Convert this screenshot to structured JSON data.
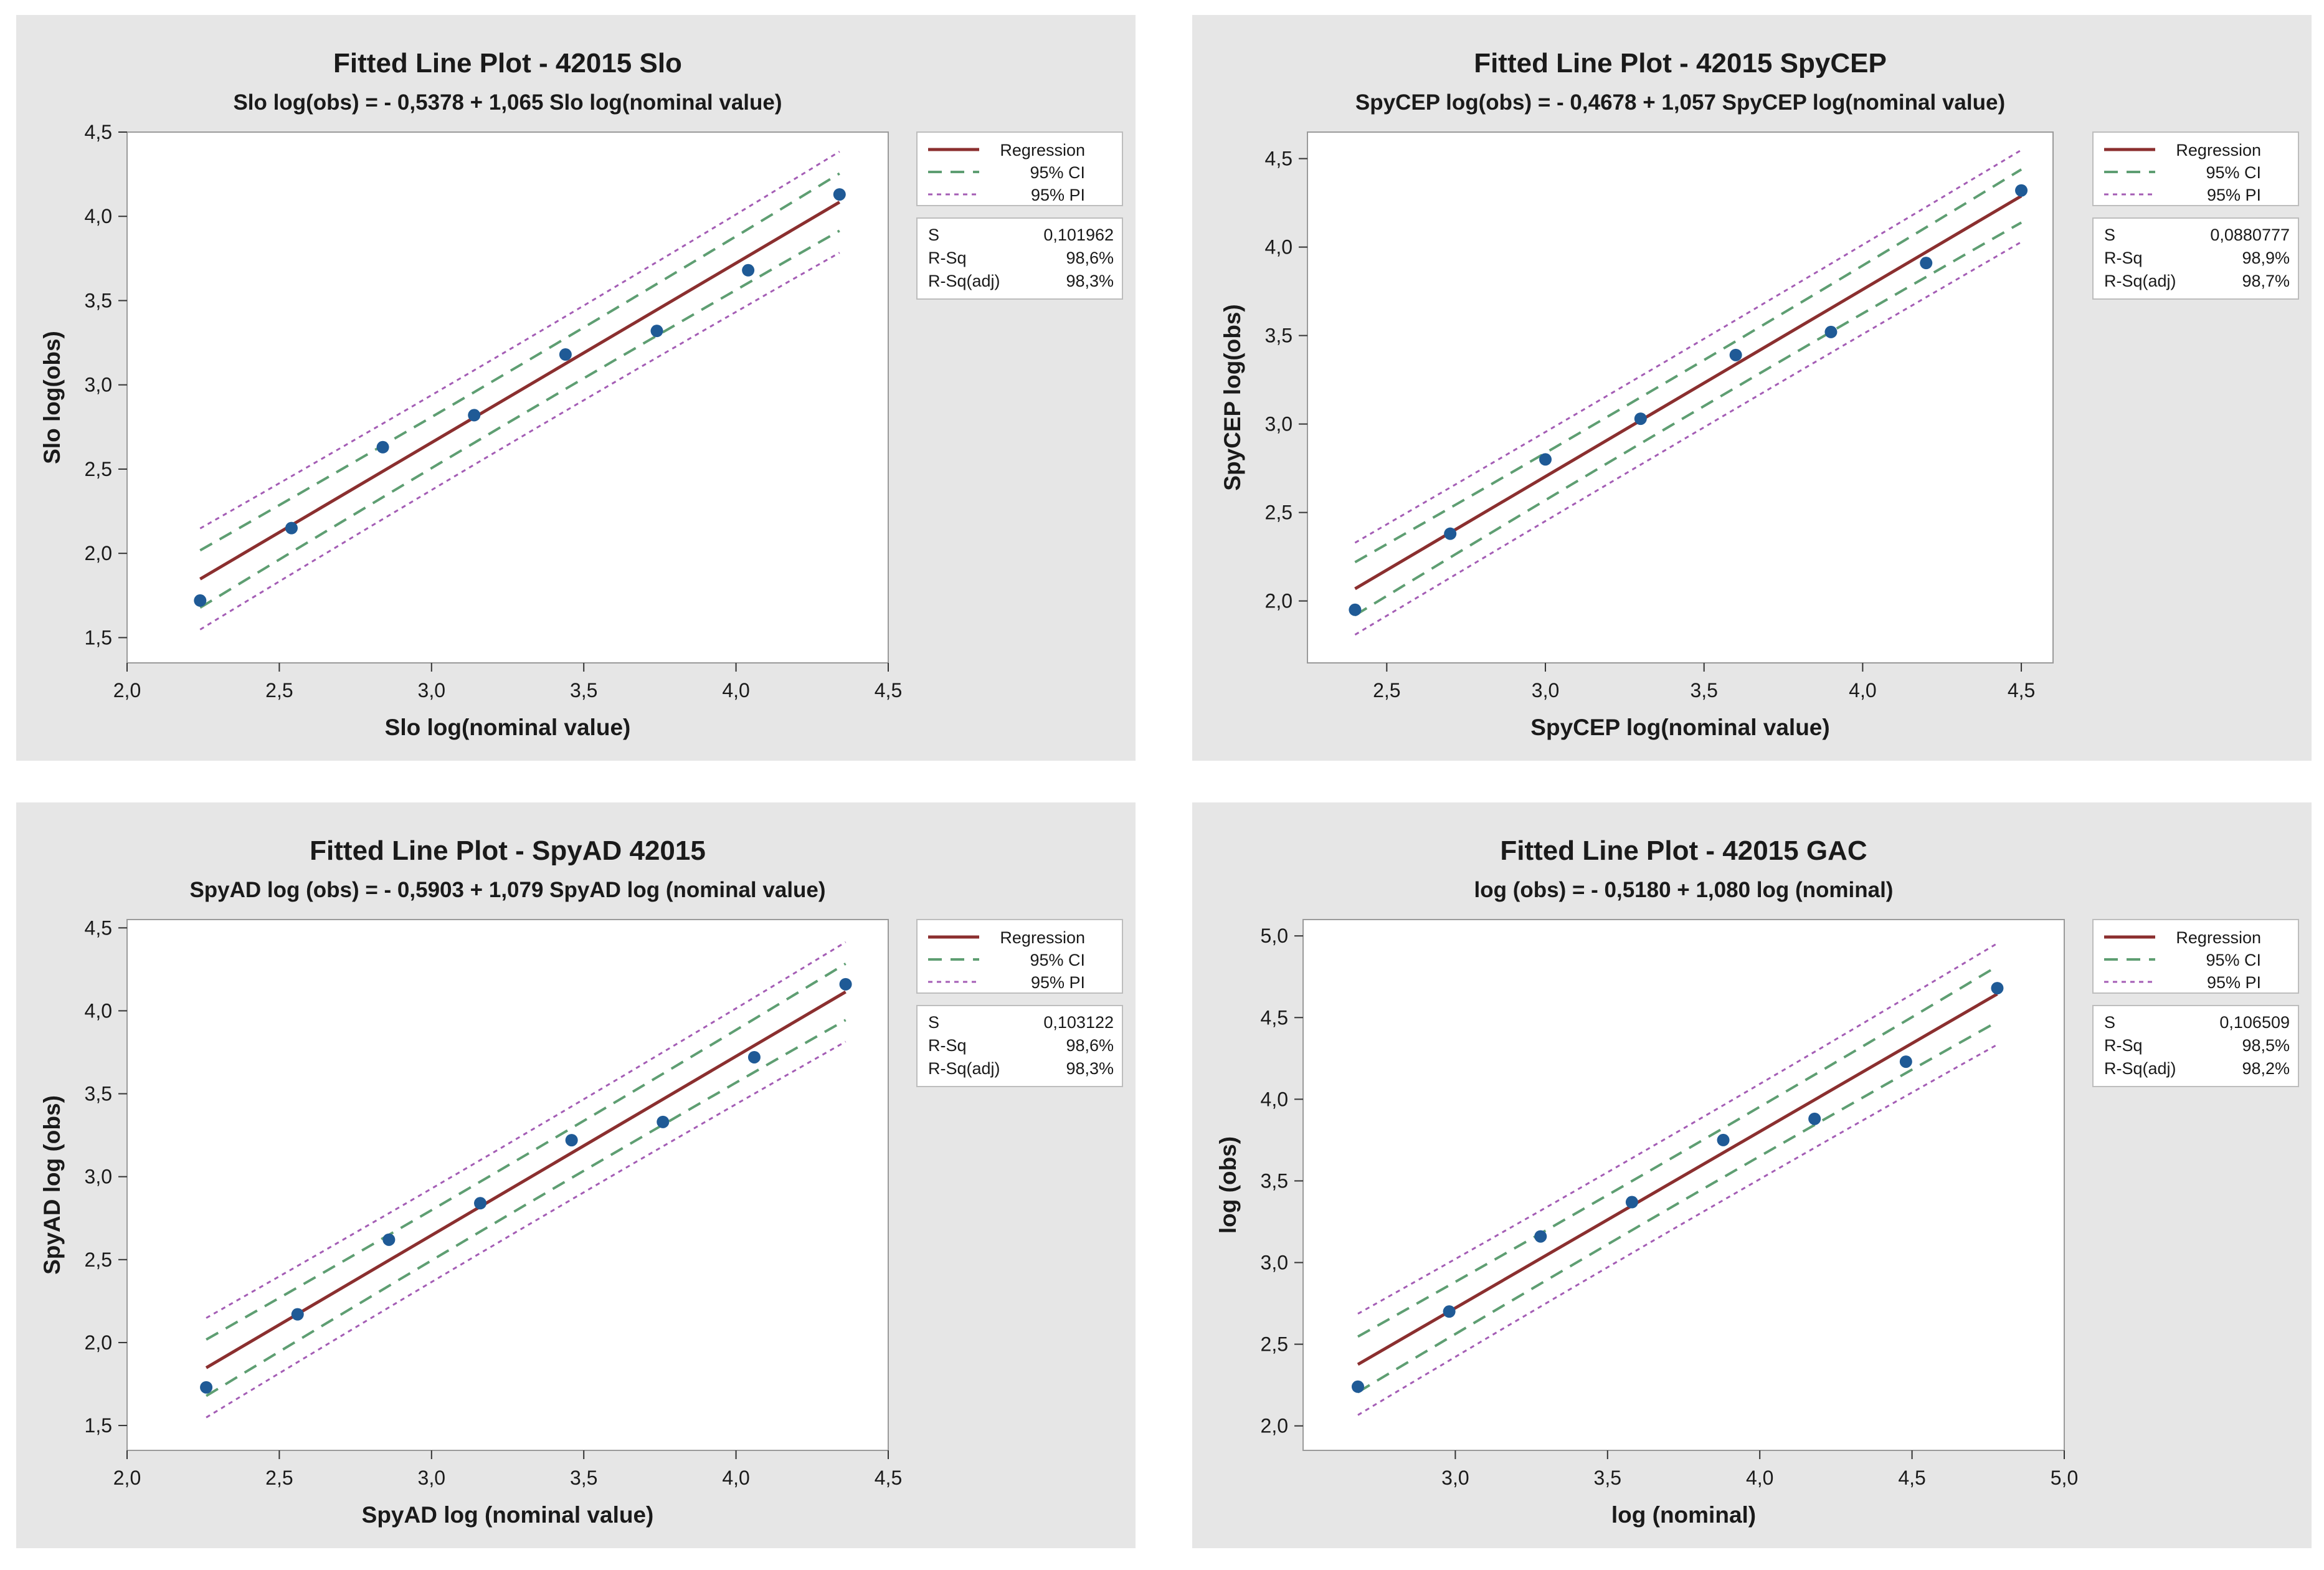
{
  "chart_data": [
    {
      "type": "scatter",
      "title": "Fitted Line Plot - 42015 Slo",
      "subtitle": "Slo log(obs) = - 0,5378 + 1,065 Slo log(nominal value)",
      "xlabel": "Slo log(nominal value)",
      "ylabel": "Slo log(obs)",
      "xlim": [
        2.0,
        4.5
      ],
      "ylim": [
        1.35,
        4.5
      ],
      "xticks": [
        2.0,
        2.5,
        3.0,
        3.5,
        4.0,
        4.5
      ],
      "xtick_labels": [
        "2,0",
        "2,5",
        "3,0",
        "3,5",
        "4,0",
        "4,5"
      ],
      "yticks": [
        1.5,
        2.0,
        2.5,
        3.0,
        3.5,
        4.0,
        4.5
      ],
      "ytick_labels": [
        "1,5",
        "2,0",
        "2,5",
        "3,0",
        "3,5",
        "4,0",
        "4,5"
      ],
      "regression": {
        "intercept": -0.5378,
        "slope": 1.065,
        "x_range": [
          2.24,
          4.34
        ]
      },
      "ci_half_width": {
        "center": 0.15,
        "edge": 0.17
      },
      "pi_half_width": {
        "center": 0.28,
        "edge": 0.3
      },
      "x": [
        2.24,
        2.54,
        2.84,
        3.14,
        3.44,
        3.74,
        4.04,
        4.34
      ],
      "y": [
        1.72,
        2.15,
        2.63,
        2.82,
        3.18,
        3.32,
        3.68,
        4.13
      ],
      "legend": {
        "regression": "Regression",
        "ci": "95% CI",
        "pi": "95% PI"
      },
      "stats": [
        {
          "label": "S",
          "value": "0,101962"
        },
        {
          "label": "R-Sq",
          "value": "98,6%"
        },
        {
          "label": "R-Sq(adj)",
          "value": "98,3%"
        }
      ]
    },
    {
      "type": "scatter",
      "title": "Fitted Line Plot - 42015 SpyCEP",
      "subtitle": "SpyCEP log(obs) = - 0,4678 + 1,057 SpyCEP log(nominal value)",
      "xlabel": "SpyCEP log(nominal value)",
      "ylabel": "SpyCEP log(obs)",
      "xlim": [
        2.25,
        4.6
      ],
      "ylim": [
        1.65,
        4.65
      ],
      "xticks": [
        2.5,
        3.0,
        3.5,
        4.0,
        4.5
      ],
      "xtick_labels": [
        "2,5",
        "3,0",
        "3,5",
        "4,0",
        "4,5"
      ],
      "yticks": [
        2.0,
        2.5,
        3.0,
        3.5,
        4.0,
        4.5
      ],
      "ytick_labels": [
        "2,0",
        "2,5",
        "3,0",
        "3,5",
        "4,0",
        "4,5"
      ],
      "regression": {
        "intercept": -0.4678,
        "slope": 1.057,
        "x_range": [
          2.4,
          4.5
        ]
      },
      "ci_half_width": {
        "center": 0.13,
        "edge": 0.15
      },
      "pi_half_width": {
        "center": 0.25,
        "edge": 0.26
      },
      "x": [
        2.4,
        2.7,
        3.0,
        3.3,
        3.6,
        3.9,
        4.2,
        4.5
      ],
      "y": [
        1.95,
        2.38,
        2.8,
        3.03,
        3.39,
        3.52,
        3.91,
        4.32
      ],
      "legend": {
        "regression": "Regression",
        "ci": "95% CI",
        "pi": "95% PI"
      },
      "stats": [
        {
          "label": "S",
          "value": "0,0880777"
        },
        {
          "label": "R-Sq",
          "value": "98,9%"
        },
        {
          "label": "R-Sq(adj)",
          "value": "98,7%"
        }
      ]
    },
    {
      "type": "scatter",
      "title": "Fitted Line Plot - SpyAD 42015",
      "subtitle": "SpyAD log (obs) = - 0,5903 + 1,079 SpyAD log (nominal value)",
      "xlabel": "SpyAD log (nominal value)",
      "ylabel": "SpyAD log (obs)",
      "xlim": [
        2.0,
        4.5
      ],
      "ylim": [
        1.35,
        4.55
      ],
      "xticks": [
        2.0,
        2.5,
        3.0,
        3.5,
        4.0,
        4.5
      ],
      "xtick_labels": [
        "2,0",
        "2,5",
        "3,0",
        "3,5",
        "4,0",
        "4,5"
      ],
      "yticks": [
        1.5,
        2.0,
        2.5,
        3.0,
        3.5,
        4.0,
        4.5
      ],
      "ytick_labels": [
        "1,5",
        "2,0",
        "2,5",
        "3,0",
        "3,5",
        "4,0",
        "4,5"
      ],
      "regression": {
        "intercept": -0.5903,
        "slope": 1.079,
        "x_range": [
          2.26,
          4.36
        ]
      },
      "ci_half_width": {
        "center": 0.15,
        "edge": 0.17
      },
      "pi_half_width": {
        "center": 0.28,
        "edge": 0.3
      },
      "x": [
        2.26,
        2.56,
        2.86,
        3.16,
        3.46,
        3.76,
        4.06,
        4.36
      ],
      "y": [
        1.73,
        2.17,
        2.62,
        2.84,
        3.22,
        3.33,
        3.72,
        4.16
      ],
      "legend": {
        "regression": "Regression",
        "ci": "95% CI",
        "pi": "95% PI"
      },
      "stats": [
        {
          "label": "S",
          "value": "0,103122"
        },
        {
          "label": "R-Sq",
          "value": "98,6%"
        },
        {
          "label": "R-Sq(adj)",
          "value": "98,3%"
        }
      ]
    },
    {
      "type": "scatter",
      "title": "Fitted Line Plot - 42015 GAC",
      "subtitle": "log (obs) = - 0,5180 + 1,080 log (nominal)",
      "xlabel": "log (nominal)",
      "ylabel": "log (obs)",
      "xlim": [
        2.5,
        5.0
      ],
      "ylim": [
        1.85,
        5.1
      ],
      "xticks": [
        3.0,
        3.5,
        4.0,
        4.5,
        5.0
      ],
      "xtick_labels": [
        "3,0",
        "3,5",
        "4,0",
        "4,5",
        "5,0"
      ],
      "yticks": [
        2.0,
        2.5,
        3.0,
        3.5,
        4.0,
        4.5,
        5.0
      ],
      "ytick_labels": [
        "2,0",
        "2,5",
        "3,0",
        "3,5",
        "4,0",
        "4,5",
        "5,0"
      ],
      "regression": {
        "intercept": -0.518,
        "slope": 1.08,
        "x_range": [
          2.68,
          4.78
        ]
      },
      "ci_half_width": {
        "center": 0.15,
        "edge": 0.17
      },
      "pi_half_width": {
        "center": 0.29,
        "edge": 0.31
      },
      "x": [
        2.68,
        2.98,
        3.28,
        3.58,
        3.88,
        4.18,
        4.48,
        4.78
      ],
      "y": [
        2.24,
        2.7,
        3.16,
        3.37,
        3.75,
        3.88,
        4.23,
        4.68
      ],
      "legend": {
        "regression": "Regression",
        "ci": "95% CI",
        "pi": "95% PI"
      },
      "stats": [
        {
          "label": "S",
          "value": "0,106509"
        },
        {
          "label": "R-Sq",
          "value": "98,5%"
        },
        {
          "label": "R-Sq(adj)",
          "value": "98,2%"
        }
      ]
    }
  ],
  "colors": {
    "panel_bg": "#e6e6e6",
    "plot_bg": "#ffffff",
    "regression": "#8b2f2f",
    "ci": "#5e9e72",
    "pi": "#a45db5",
    "points": "#1f5a96"
  }
}
